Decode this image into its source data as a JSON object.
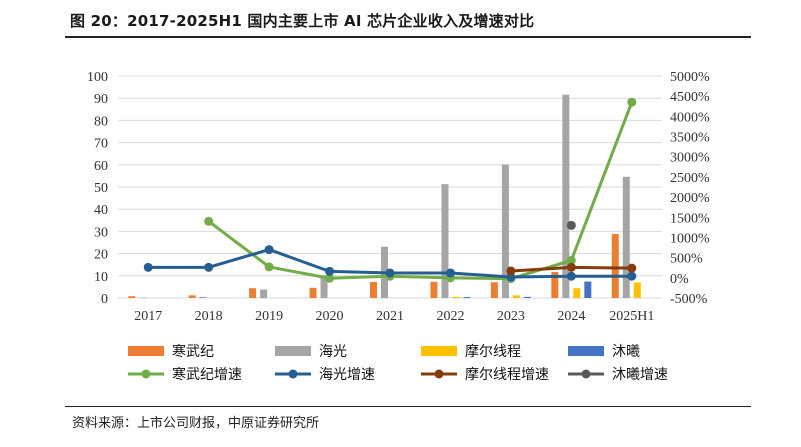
{
  "header": {
    "title": "图 20：2017-2025H1 国内主要上市 AI 芯片企业收入及增速对比"
  },
  "footer": {
    "source": "资料来源：上市公司财报，中原证券研究所"
  },
  "chart_data": {
    "type": "bar",
    "categories": [
      "2017",
      "2018",
      "2019",
      "2020",
      "2021",
      "2022",
      "2023",
      "2024",
      "2025H1"
    ],
    "left_axis": {
      "ylim": [
        0,
        100
      ],
      "ticks": [
        "0",
        "10",
        "20",
        "30",
        "40",
        "50",
        "60",
        "70",
        "80",
        "90",
        "100"
      ]
    },
    "right_axis": {
      "ylim": [
        -500,
        5000
      ],
      "ticks": [
        "-500%",
        "0%",
        "500%",
        "1000%",
        "1500%",
        "2000%",
        "2500%",
        "3000%",
        "3500%",
        "4000%",
        "4500%",
        "5000%"
      ]
    },
    "grid": true,
    "legend_position": "bottom",
    "bar_series": [
      {
        "name": "寒武纪",
        "color": "#ed7d31",
        "values": [
          0.8,
          1.2,
          4.4,
          4.6,
          7.2,
          7.3,
          7.1,
          11.7,
          28.8
        ]
      },
      {
        "name": "海光",
        "color": "#a5a5a5",
        "values": [
          0.2,
          0.5,
          3.8,
          10.2,
          23.1,
          51.3,
          60.1,
          91.6,
          54.6
        ]
      },
      {
        "name": "摩尔线程",
        "color": "#ffc000",
        "values": [
          null,
          null,
          null,
          null,
          null,
          0.5,
          1.2,
          4.4,
          7.0
        ]
      },
      {
        "name": "沐曦",
        "color": "#4472c4",
        "values": [
          null,
          null,
          null,
          null,
          null,
          0.4,
          0.5,
          7.4,
          null
        ]
      }
    ],
    "line_series": [
      {
        "name": "寒武纪增速",
        "color": "#70ad47",
        "values": [
          null,
          1400,
          270,
          -10,
          40,
          0,
          -20,
          430,
          4350
        ]
      },
      {
        "name": "海光增速",
        "color": "#255e91",
        "values": [
          260,
          260,
          700,
          160,
          120,
          120,
          20,
          40,
          40
        ]
      },
      {
        "name": "摩尔线程增速",
        "color": "#843c0c",
        "values": [
          null,
          null,
          null,
          null,
          null,
          null,
          170,
          260,
          240
        ]
      },
      {
        "name": "沐曦增速",
        "color": "#595959",
        "values": [
          null,
          null,
          null,
          null,
          null,
          null,
          null,
          1300,
          null
        ]
      }
    ]
  }
}
